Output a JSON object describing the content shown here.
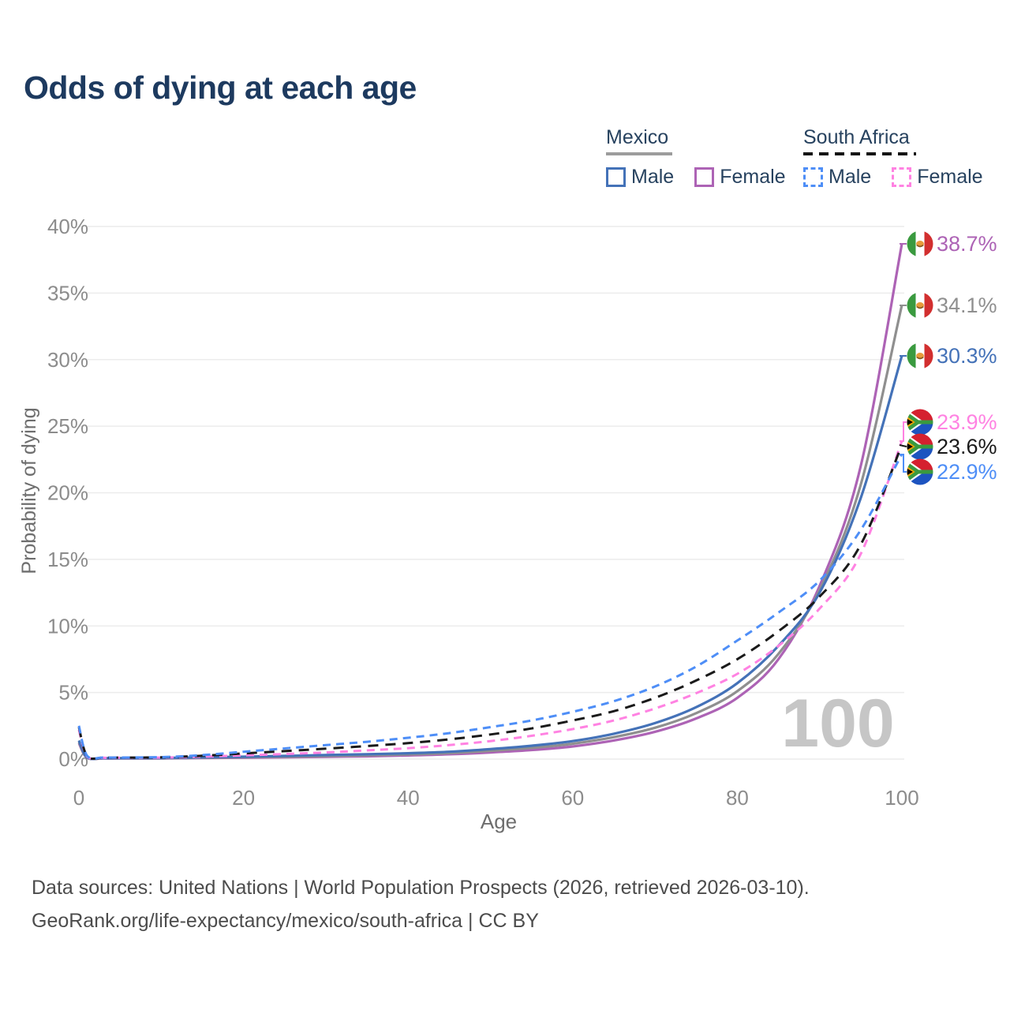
{
  "title": "Odds of dying at each age",
  "legend": {
    "groups": [
      {
        "name": "Mexico",
        "line_style": "solid",
        "underline_color": "#9c9c9c",
        "underline_width": 84,
        "items": [
          {
            "label": "Male",
            "color": "#4472b8"
          },
          {
            "label": "Female",
            "color": "#ad63b5"
          }
        ]
      },
      {
        "name": "South Africa",
        "line_style": "dashed",
        "underline_color": "#141414",
        "underline_width": 143,
        "items": [
          {
            "label": "Male",
            "color": "#4e8ef7"
          },
          {
            "label": "Female",
            "color": "#ff82e2"
          }
        ]
      }
    ]
  },
  "chart_data": {
    "type": "line",
    "title": "Odds of dying at each age",
    "xlabel": "Age",
    "ylabel": "Probability of dying",
    "xlim": [
      0,
      100
    ],
    "ylim": [
      0,
      40
    ],
    "x_ticks": [
      0,
      20,
      40,
      60,
      80,
      100
    ],
    "y_ticks": [
      0,
      5,
      10,
      15,
      20,
      25,
      30,
      35,
      40
    ],
    "y_tick_suffix": "%",
    "grid": true,
    "legend_position": "top-right",
    "watermark": "100",
    "x": [
      0,
      1,
      3,
      5,
      10,
      15,
      20,
      25,
      30,
      35,
      40,
      45,
      50,
      55,
      60,
      65,
      70,
      75,
      80,
      85,
      90,
      95,
      100
    ],
    "series": [
      {
        "name": "Mexico Female",
        "country": "Mexico",
        "sex": "Female",
        "flag": "mx",
        "color": "#ad63b5",
        "dashed": false,
        "end_label": "38.7%",
        "values": [
          1.2,
          0.1,
          0.05,
          0.05,
          0.05,
          0.08,
          0.1,
          0.13,
          0.17,
          0.21,
          0.27,
          0.36,
          0.5,
          0.68,
          0.95,
          1.4,
          2.05,
          3.05,
          4.6,
          7.5,
          13.0,
          22.0,
          38.7
        ]
      },
      {
        "name": "Mexico Both sexes",
        "country": "Mexico",
        "sex": "Both",
        "flag": "mx",
        "color": "#8f8f8f",
        "dashed": false,
        "end_label": "34.1%",
        "values": [
          1.3,
          0.11,
          0.06,
          0.06,
          0.06,
          0.1,
          0.14,
          0.18,
          0.23,
          0.28,
          0.35,
          0.45,
          0.62,
          0.84,
          1.15,
          1.65,
          2.35,
          3.45,
          5.1,
          7.9,
          12.7,
          20.6,
          34.1
        ]
      },
      {
        "name": "Mexico Male",
        "country": "Mexico",
        "sex": "Male",
        "flag": "mx",
        "color": "#4472b8",
        "dashed": false,
        "end_label": "30.3%",
        "values": [
          1.4,
          0.12,
          0.07,
          0.07,
          0.08,
          0.13,
          0.18,
          0.24,
          0.3,
          0.36,
          0.44,
          0.55,
          0.75,
          1.0,
          1.35,
          1.9,
          2.7,
          3.9,
          5.7,
          8.5,
          12.5,
          19.6,
          30.3
        ]
      },
      {
        "name": "South Africa Female",
        "country": "South Africa",
        "sex": "Female",
        "flag": "za",
        "color": "#ff82e2",
        "dashed": true,
        "end_label": "23.9%",
        "values": [
          2.2,
          0.2,
          0.1,
          0.1,
          0.11,
          0.18,
          0.28,
          0.38,
          0.5,
          0.65,
          0.82,
          1.05,
          1.35,
          1.75,
          2.25,
          2.9,
          3.8,
          4.95,
          6.4,
          8.5,
          11.3,
          15.4,
          23.9
        ]
      },
      {
        "name": "South Africa Both sexes",
        "country": "South Africa",
        "sex": "Both",
        "flag": "za",
        "color": "#1a1a1a",
        "dashed": true,
        "end_label": "23.6%",
        "values": [
          2.4,
          0.22,
          0.11,
          0.11,
          0.13,
          0.25,
          0.42,
          0.6,
          0.78,
          0.98,
          1.2,
          1.48,
          1.85,
          2.3,
          2.9,
          3.6,
          4.6,
          5.9,
          7.5,
          9.6,
          12.2,
          16.1,
          23.6
        ]
      },
      {
        "name": "South Africa Male",
        "country": "South Africa",
        "sex": "Male",
        "flag": "za",
        "color": "#4e8ef7",
        "dashed": true,
        "end_label": "22.9%",
        "values": [
          2.5,
          0.25,
          0.12,
          0.12,
          0.15,
          0.3,
          0.55,
          0.8,
          1.05,
          1.3,
          1.6,
          1.95,
          2.4,
          2.9,
          3.55,
          4.35,
          5.45,
          6.95,
          8.9,
          11.0,
          13.4,
          17.2,
          22.9
        ]
      }
    ]
  },
  "footer": {
    "line1": "Data sources: United Nations | World Population Prospects (2026, retrieved 2026-03-10).",
    "line2": "GeoRank.org/life-expectancy/mexico/south-africa | CC BY"
  },
  "colors": {
    "title": "#1d3a5f",
    "legend_text": "#27425f",
    "grid": "#ececec",
    "tick_label": "#8c8c8c",
    "axis_title": "#6e6e6e",
    "watermark": "#c6c6c6",
    "footer": "#4c4c4c"
  }
}
